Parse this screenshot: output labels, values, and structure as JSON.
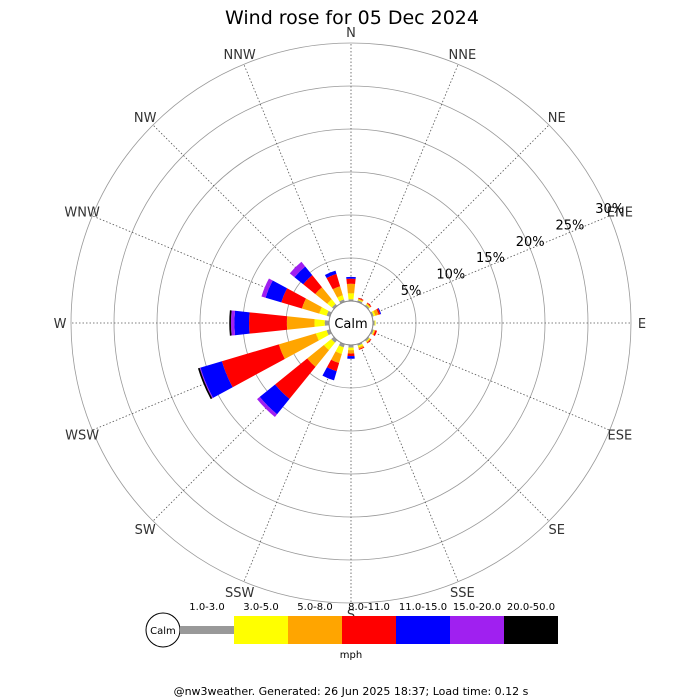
{
  "chart_data": {
    "type": "wind-rose",
    "title": "Wind rose for 05 Dec 2024",
    "directions": [
      "N",
      "NNE",
      "NE",
      "ENE",
      "E",
      "ESE",
      "SE",
      "SSE",
      "S",
      "SSW",
      "SW",
      "WSW",
      "W",
      "WNW",
      "NW",
      "NNW"
    ],
    "rings": [
      5,
      10,
      15,
      20,
      25,
      30
    ],
    "ring_labels": [
      "5%",
      "10%",
      "15%",
      "20%",
      "25%",
      "30%"
    ],
    "ring_labels_shown_at": "ENE",
    "center_label": "Calm",
    "unit": "mph",
    "speed_bins": [
      {
        "label": "1.0-3.0",
        "color": "#999999"
      },
      {
        "label": "3.0-5.0",
        "color": "#ffff00"
      },
      {
        "label": "5.0-8.0",
        "color": "#ffa500"
      },
      {
        "label": "8.0-11.0",
        "color": "#ff0000"
      },
      {
        "label": "11.0-15.0",
        "color": "#0000ff"
      },
      {
        "label": "15.0-20.0",
        "color": "#a020f0"
      },
      {
        "label": "20.0-50.0",
        "color": "#000000"
      }
    ],
    "cumulative_percent": [
      [
        0.2,
        0.9,
        2.0,
        2.6,
        2.8,
        2.8,
        2.8
      ],
      [
        0.2,
        0.3,
        0.4,
        0.5,
        0.5,
        0.5,
        0.5
      ],
      [
        0.2,
        0.3,
        0.4,
        0.5,
        0.5,
        0.5,
        0.5
      ],
      [
        0.2,
        0.4,
        0.8,
        1.0,
        1.1,
        1.1,
        1.1
      ],
      [
        0.2,
        0.3,
        0.3,
        0.3,
        0.3,
        0.3,
        0.3
      ],
      [
        0.2,
        0.3,
        0.4,
        0.6,
        0.6,
        0.6,
        0.6
      ],
      [
        0.2,
        0.3,
        0.4,
        0.5,
        0.5,
        0.5,
        0.5
      ],
      [
        0.2,
        0.4,
        0.6,
        0.7,
        0.7,
        0.7,
        0.7
      ],
      [
        0.3,
        0.6,
        1.0,
        1.3,
        1.6,
        1.6,
        1.6
      ],
      [
        0.4,
        1.2,
        2.3,
        3.3,
        4.4,
        4.4,
        4.4
      ],
      [
        0.4,
        1.5,
        4.0,
        8.8,
        11.1,
        11.5,
        11.5
      ],
      [
        0.4,
        1.7,
        6.2,
        13.1,
        15.7,
        15.8,
        16.0
      ],
      [
        0.5,
        1.7,
        4.9,
        9.3,
        11.0,
        11.4,
        11.6
      ],
      [
        0.4,
        1.3,
        3.4,
        5.9,
        7.8,
        8.3,
        8.3
      ],
      [
        0.3,
        1.0,
        2.8,
        4.6,
        5.9,
        6.6,
        6.6
      ],
      [
        0.3,
        0.8,
        1.9,
        3.4,
        3.8,
        3.8,
        3.8
      ]
    ]
  },
  "legend": {
    "calm_label": "Calm",
    "bin_labels": [
      "1.0-3.0",
      "3.0-5.0",
      "5.0-8.0",
      "8.0-11.0",
      "11.0-15.0",
      "15.0-20.0",
      "20.0-50.0"
    ],
    "unit": "mph"
  },
  "footer": "@nw3weather. Generated: 26 Jun 2025 18:37; Load time: 0.12 s"
}
